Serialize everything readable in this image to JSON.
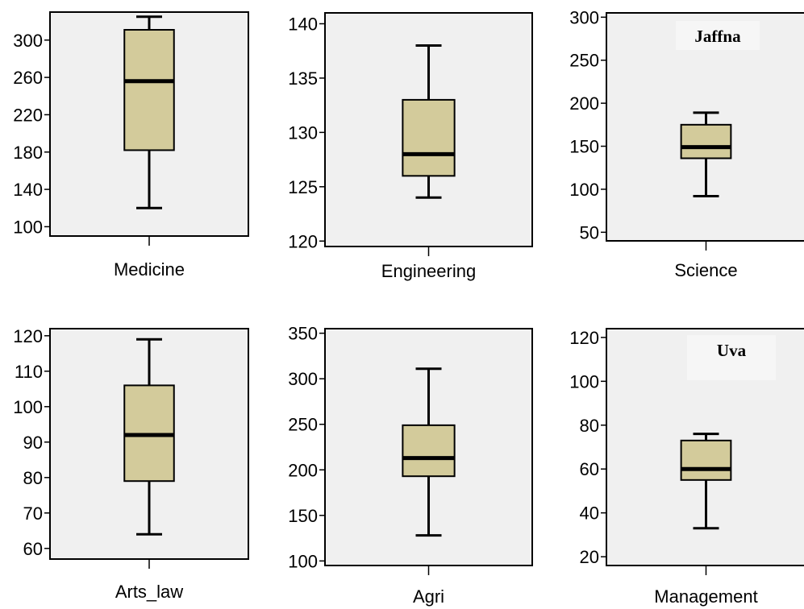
{
  "chart_data": [
    {
      "type": "box",
      "xlabel": "Medicine",
      "ylim": [
        90,
        330
      ],
      "yticks": [
        100,
        140,
        180,
        220,
        260,
        300
      ],
      "box": {
        "min": 120,
        "q1": 182,
        "median": 256,
        "q3": 311,
        "max": 325
      },
      "annotation": "",
      "colors": {
        "box": "#d3cb9b",
        "plot_bg": "#f0f0f0"
      }
    },
    {
      "type": "box",
      "xlabel": "Engineering",
      "ylim": [
        119.5,
        141
      ],
      "yticks": [
        120,
        125,
        130,
        135,
        140
      ],
      "box": {
        "min": 124,
        "q1": 126,
        "median": 128,
        "q3": 133,
        "max": 138
      },
      "annotation": "",
      "colors": {
        "box": "#d3cb9b",
        "plot_bg": "#f0f0f0"
      }
    },
    {
      "type": "box",
      "xlabel": "Science",
      "ylim": [
        40,
        305
      ],
      "yticks": [
        50,
        100,
        150,
        200,
        250,
        300
      ],
      "box": {
        "min": 92,
        "q1": 136,
        "median": 149,
        "q3": 175,
        "max": 189
      },
      "annotation": "Jaffna",
      "colors": {
        "box": "#d3cb9b",
        "plot_bg": "#f0f0f0"
      }
    },
    {
      "type": "box",
      "xlabel": "Arts_law",
      "ylim": [
        57,
        122
      ],
      "yticks": [
        60,
        70,
        80,
        90,
        100,
        110,
        120
      ],
      "box": {
        "min": 64,
        "q1": 79,
        "median": 92,
        "q3": 106,
        "max": 119
      },
      "annotation": "",
      "colors": {
        "box": "#d3cb9b",
        "plot_bg": "#f0f0f0"
      }
    },
    {
      "type": "box",
      "xlabel": "Agri",
      "ylim": [
        95,
        355
      ],
      "yticks": [
        100,
        150,
        200,
        250,
        300,
        350
      ],
      "box": {
        "min": 128,
        "q1": 193,
        "median": 213,
        "q3": 249,
        "max": 311
      },
      "annotation": "",
      "colors": {
        "box": "#d3cb9b",
        "plot_bg": "#f0f0f0"
      }
    },
    {
      "type": "box",
      "xlabel": "Management",
      "ylim": [
        16,
        124
      ],
      "yticks": [
        20,
        40,
        60,
        80,
        100,
        120
      ],
      "box": {
        "min": 33,
        "q1": 55,
        "median": 60,
        "q3": 73,
        "max": 76
      },
      "annotation": "Uva",
      "colors": {
        "box": "#d3cb9b",
        "plot_bg": "#f0f0f0"
      }
    }
  ]
}
